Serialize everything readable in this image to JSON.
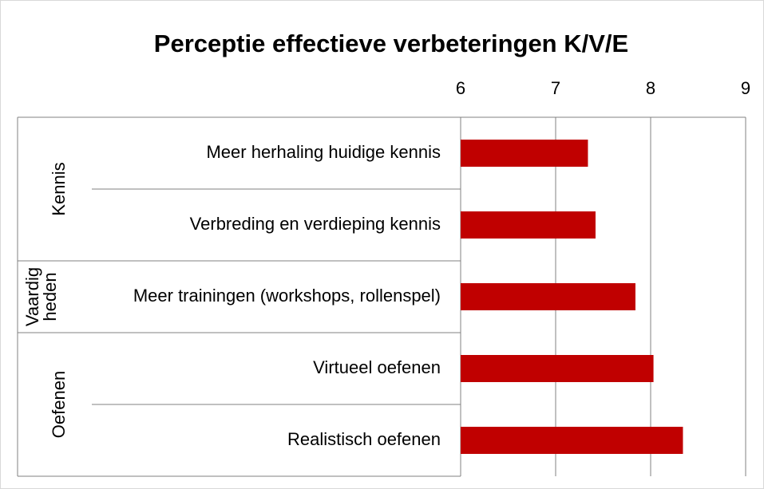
{
  "chart_data": {
    "type": "bar",
    "orientation": "horizontal",
    "title": "Perceptie effectieve verbeteringen K/V/E",
    "groups": [
      {
        "label": [
          "Kennis"
        ],
        "categories": [
          "Meer herhaling huidige kennis",
          "Verbreding en verdieping kennis"
        ]
      },
      {
        "label": [
          "Vaardig",
          "heden"
        ],
        "categories": [
          "Meer trainingen (workshops, rollenspel)"
        ]
      },
      {
        "label": [
          "Oefenen"
        ],
        "categories": [
          "Virtueel oefenen",
          "Realistisch oefenen"
        ]
      }
    ],
    "values": [
      7.34,
      7.42,
      7.84,
      8.03,
      8.34
    ],
    "color": "#c00000",
    "xlim": [
      6,
      9
    ],
    "xticks": [
      6,
      7,
      8,
      9
    ],
    "grid": true
  }
}
